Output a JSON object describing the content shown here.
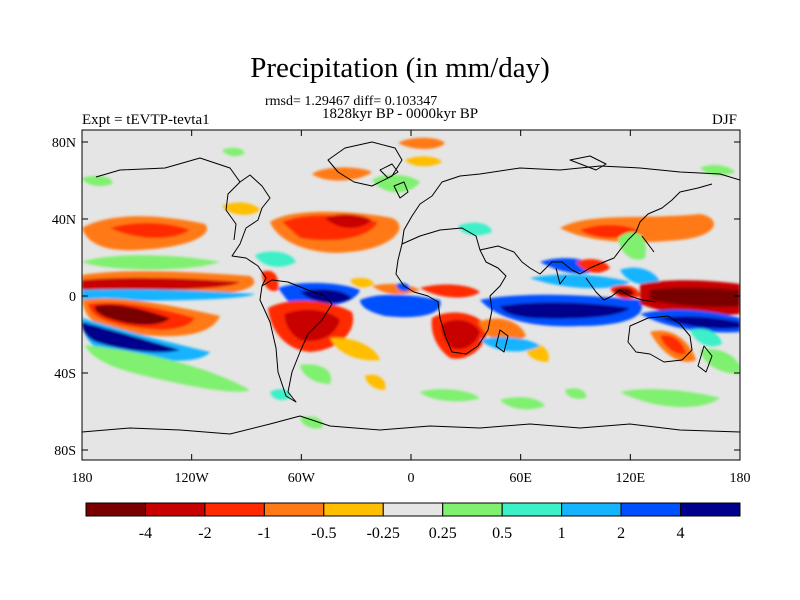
{
  "title": "Precipitation (in mm/day)",
  "stats": "rmsd= 1.29467 diff= 0.103347",
  "period": "1828kyr BP - 0000kyr BP",
  "experiment": "Expt = tEVTP-tevta1",
  "season": "DJF",
  "lat_ticks": [
    {
      "label": "80N",
      "value": 80
    },
    {
      "label": "40N",
      "value": 40
    },
    {
      "label": "0",
      "value": 0
    },
    {
      "label": "40S",
      "value": -40
    },
    {
      "label": "80S",
      "value": -80
    }
  ],
  "lon_ticks": [
    {
      "label": "180",
      "value": -180
    },
    {
      "label": "120W",
      "value": -120
    },
    {
      "label": "60W",
      "value": -60
    },
    {
      "label": "0",
      "value": 0
    },
    {
      "label": "60E",
      "value": 60
    },
    {
      "label": "120E",
      "value": 120
    },
    {
      "label": "180",
      "value": 180
    }
  ],
  "colorbar": {
    "colors": [
      "#7a0000",
      "#c80000",
      "#ff2a00",
      "#ff7a14",
      "#ffbe00",
      "#e5e5e5",
      "#80f070",
      "#3cf0c8",
      "#14b4ff",
      "#0050ff",
      "#00008c"
    ],
    "labels": [
      "-4",
      "-2",
      "-1",
      "-0.5",
      "-0.25",
      "0.25",
      "0.5",
      "1",
      "2",
      "4"
    ]
  }
}
